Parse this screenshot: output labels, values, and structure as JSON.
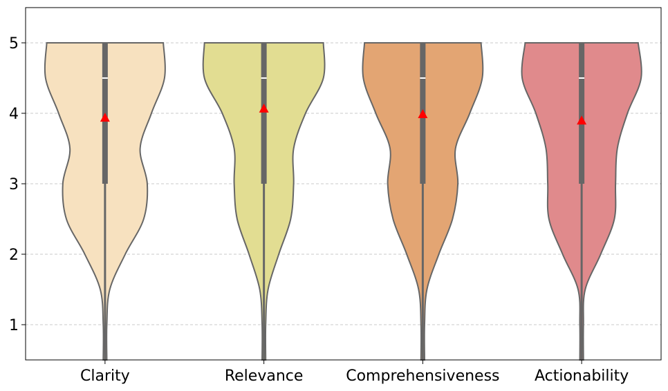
{
  "chart_data": {
    "type": "violin",
    "categories": [
      "Clarity",
      "Relevance",
      "Comprehensiveness",
      "Actionability"
    ],
    "ylim": [
      0.5,
      5.5
    ],
    "yticks": [
      1,
      2,
      3,
      4,
      5
    ],
    "grid": "y-dashed",
    "series": [
      {
        "category": "Clarity",
        "color": "#f7e1bf",
        "median": 4.5,
        "q1": 3.0,
        "q3": 5.0,
        "min": 0.5,
        "max": 5.0,
        "mean": 3.93,
        "density_y": [
          0.5,
          1.0,
          1.5,
          2.0,
          2.5,
          3.0,
          3.5,
          4.0,
          4.5,
          5.0
        ],
        "density_w": [
          0.03,
          0.03,
          0.08,
          0.34,
          0.65,
          0.71,
          0.59,
          0.78,
          1.0,
          0.98
        ]
      },
      {
        "category": "Relevance",
        "color": "#e2dd92",
        "median": 4.5,
        "q1": 3.0,
        "q3": 5.0,
        "min": 0.5,
        "max": 5.0,
        "mean": 4.06,
        "density_y": [
          0.5,
          1.0,
          1.5,
          2.0,
          2.5,
          3.0,
          3.5,
          4.0,
          4.5,
          5.0
        ],
        "density_w": [
          0.03,
          0.03,
          0.07,
          0.25,
          0.45,
          0.5,
          0.5,
          0.7,
          1.0,
          1.0
        ]
      },
      {
        "category": "Comprehensiveness",
        "color": "#e3a573",
        "median": 4.5,
        "q1": 3.0,
        "q3": 5.0,
        "min": 0.5,
        "max": 5.0,
        "mean": 3.98,
        "density_y": [
          0.5,
          1.0,
          1.5,
          2.0,
          2.5,
          3.0,
          3.5,
          4.0,
          4.5,
          5.0
        ],
        "density_w": [
          0.03,
          0.03,
          0.07,
          0.27,
          0.5,
          0.59,
          0.55,
          0.79,
          1.0,
          0.98
        ]
      },
      {
        "category": "Actionability",
        "color": "#e08a8c",
        "median": 4.5,
        "q1": 3.0,
        "q3": 5.0,
        "min": 0.5,
        "max": 5.0,
        "mean": 3.89,
        "density_y": [
          0.5,
          1.0,
          1.5,
          2.0,
          2.5,
          3.0,
          3.5,
          4.0,
          4.5,
          5.0
        ],
        "density_w": [
          0.03,
          0.03,
          0.06,
          0.32,
          0.55,
          0.57,
          0.6,
          0.77,
          1.0,
          0.95
        ]
      }
    ],
    "mean_marker": {
      "shape": "triangle",
      "color": "#ff0000"
    },
    "edge_color": "#666666"
  }
}
